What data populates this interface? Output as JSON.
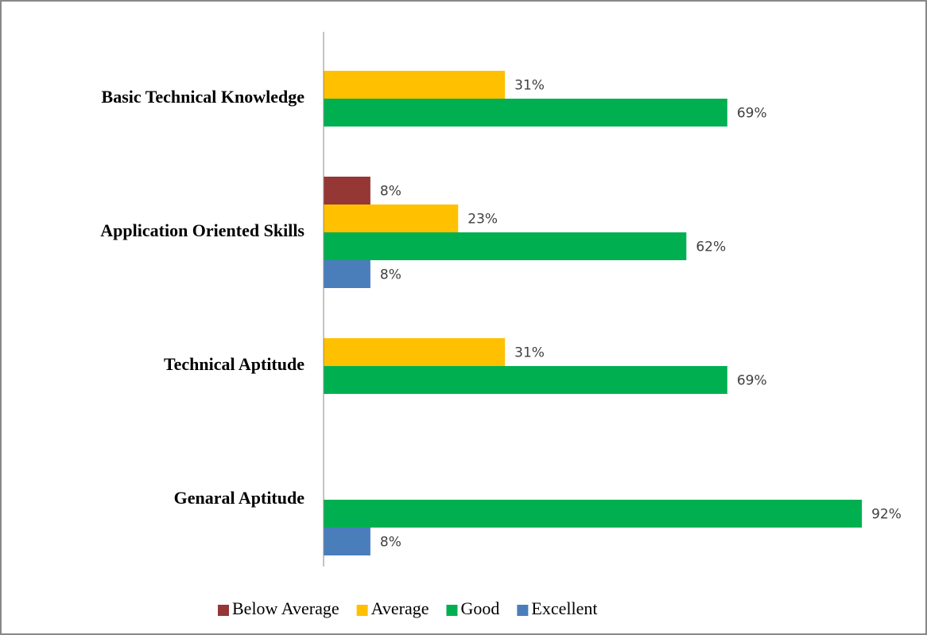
{
  "chart_data": {
    "type": "bar",
    "orientation": "horizontal",
    "categories": [
      "Basic Technical Knowledge",
      "Application Oriented Skills",
      "Technical Aptitude",
      "Genaral Aptitude"
    ],
    "series": [
      {
        "name": "Below Average",
        "color": "#953735",
        "values": [
          null,
          8,
          null,
          null
        ],
        "value_labels": [
          null,
          "8%",
          null,
          null
        ]
      },
      {
        "name": "Average",
        "color": "#ffc000",
        "values": [
          31,
          23,
          31,
          null
        ],
        "value_labels": [
          "31%",
          "23%",
          "31%",
          null
        ]
      },
      {
        "name": "Good",
        "color": "#00b050",
        "values": [
          69,
          62,
          69,
          92
        ],
        "value_labels": [
          "69%",
          "62%",
          "69%",
          "92%"
        ]
      },
      {
        "name": "Excellent",
        "color": "#4a7ebb",
        "values": [
          null,
          8,
          null,
          8
        ],
        "value_labels": [
          null,
          "8%",
          null,
          "8%"
        ]
      }
    ],
    "xlim": [
      0,
      100
    ],
    "legend": "bottom"
  }
}
